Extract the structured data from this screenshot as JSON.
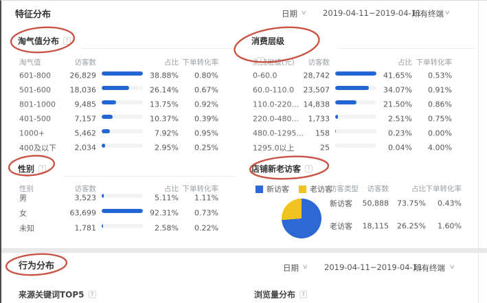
{
  "header": {
    "title": "特征分布",
    "date_label": "日期",
    "date_range": "2019-04-11~2019-04-11",
    "terminal_label": "所有终端"
  },
  "ui": {
    "help_glyph": "?",
    "chevron": "∨"
  },
  "colors": {
    "bar": "#2166d2",
    "pie_new": "#2e68d5",
    "pie_old": "#f0c41f",
    "annotation": "#c23b2a"
  },
  "panels": [
    {
      "title": "淘气值分布",
      "columns": [
        "淘气值",
        "访客数",
        "占比",
        "下单转化率"
      ],
      "rows": [
        {
          "label": "601-800",
          "visitors": "26,829",
          "share": "38.88%",
          "conversion": "0.80%"
        },
        {
          "label": "501-600",
          "visitors": "18,036",
          "share": "26.14%",
          "conversion": "0.67%"
        },
        {
          "label": "801-1000",
          "visitors": "9,485",
          "share": "13.75%",
          "conversion": "0.92%"
        },
        {
          "label": "401-500",
          "visitors": "7,157",
          "share": "10.37%",
          "conversion": "0.39%"
        },
        {
          "label": "1000+",
          "visitors": "5,462",
          "share": "7.92%",
          "conversion": "0.95%"
        },
        {
          "label": "400及以下",
          "visitors": "2,034",
          "share": "2.95%",
          "conversion": "0.25%"
        }
      ]
    },
    {
      "title": "消费层级",
      "columns": [
        "消费层级(元)",
        "访客数",
        "占比",
        "下单转化率"
      ],
      "rows": [
        {
          "label": "0-60.0",
          "visitors": "28,742",
          "share": "41.65%",
          "conversion": "0.53%"
        },
        {
          "label": "60.0-110.0",
          "visitors": "23,507",
          "share": "34.07%",
          "conversion": "0.91%"
        },
        {
          "label": "110.0-220...",
          "visitors": "14,838",
          "share": "21.50%",
          "conversion": "0.86%"
        },
        {
          "label": "220.0-480...",
          "visitors": "1,733",
          "share": "2.51%",
          "conversion": "0.75%"
        },
        {
          "label": "480.0-1295...",
          "visitors": "158",
          "share": "0.23%",
          "conversion": "0.00%"
        },
        {
          "label": "1295.0以上",
          "visitors": "25",
          "share": "0.04%",
          "conversion": "4.00%"
        }
      ]
    },
    {
      "title": "性别",
      "columns": [
        "性别",
        "访客数",
        "占比",
        "下单转化率"
      ],
      "rows": [
        {
          "label": "男",
          "visitors": "3,523",
          "share": "5.11%",
          "conversion": "1.11%"
        },
        {
          "label": "女",
          "visitors": "63,699",
          "share": "92.31%",
          "conversion": "0.73%"
        },
        {
          "label": "未知",
          "visitors": "1,781",
          "share": "2.58%",
          "conversion": "0.22%"
        }
      ]
    },
    {
      "title": "店铺新老访客",
      "columns": [
        "访客类型",
        "访客数",
        "占比",
        "下单转化率"
      ],
      "legend": [
        {
          "label": "新访客",
          "color": "#2e68d5"
        },
        {
          "label": "老访客",
          "color": "#f0c41f"
        }
      ],
      "pie": {
        "slices": [
          {
            "label": "新访客",
            "pct": 73.75,
            "color": "#2e68d5"
          },
          {
            "label": "老访客",
            "pct": 26.25,
            "color": "#f0c41f"
          }
        ]
      },
      "rows": [
        {
          "label": "新访客",
          "visitors": "50,888",
          "share": "73.75%",
          "conversion": "0.43%"
        },
        {
          "label": "老访客",
          "visitors": "18,115",
          "share": "26.25%",
          "conversion": "1.60%"
        }
      ]
    }
  ],
  "behavior": {
    "title": "行为分布",
    "date_label": "日期",
    "date_range": "2019-04-11~2019-04-11",
    "terminal_label": "所有终端",
    "subsections": [
      "来源关键词TOP5",
      "浏览量分布"
    ]
  },
  "chart_data": [
    {
      "type": "bar",
      "title": "淘气值分布",
      "categories": [
        "601-800",
        "501-600",
        "801-1000",
        "401-500",
        "1000+",
        "400及以下"
      ],
      "series": [
        {
          "name": "访客数",
          "values": [
            26829,
            18036,
            9485,
            7157,
            5462,
            2034
          ]
        },
        {
          "name": "占比(%)",
          "values": [
            38.88,
            26.14,
            13.75,
            10.37,
            7.92,
            2.95
          ]
        },
        {
          "name": "下单转化率(%)",
          "values": [
            0.8,
            0.67,
            0.92,
            0.39,
            0.95,
            0.25
          ]
        }
      ]
    },
    {
      "type": "bar",
      "title": "消费层级",
      "categories": [
        "0-60.0",
        "60.0-110.0",
        "110.0-220...",
        "220.0-480...",
        "480.0-1295...",
        "1295.0以上"
      ],
      "series": [
        {
          "name": "访客数",
          "values": [
            28742,
            23507,
            14838,
            1733,
            158,
            25
          ]
        },
        {
          "name": "占比(%)",
          "values": [
            41.65,
            34.07,
            21.5,
            2.51,
            0.23,
            0.04
          ]
        },
        {
          "name": "下单转化率(%)",
          "values": [
            0.53,
            0.91,
            0.86,
            0.75,
            0.0,
            4.0
          ]
        }
      ]
    },
    {
      "type": "bar",
      "title": "性别",
      "categories": [
        "男",
        "女",
        "未知"
      ],
      "series": [
        {
          "name": "访客数",
          "values": [
            3523,
            63699,
            1781
          ]
        },
        {
          "name": "占比(%)",
          "values": [
            5.11,
            92.31,
            2.58
          ]
        },
        {
          "name": "下单转化率(%)",
          "values": [
            1.11,
            0.73,
            0.22
          ]
        }
      ]
    },
    {
      "type": "pie",
      "title": "店铺新老访客",
      "labels": [
        "新访客",
        "老访客"
      ],
      "values": [
        73.75,
        26.25
      ],
      "colors": [
        "#2e68d5",
        "#f0c41f"
      ],
      "legend_position": "top"
    }
  ]
}
